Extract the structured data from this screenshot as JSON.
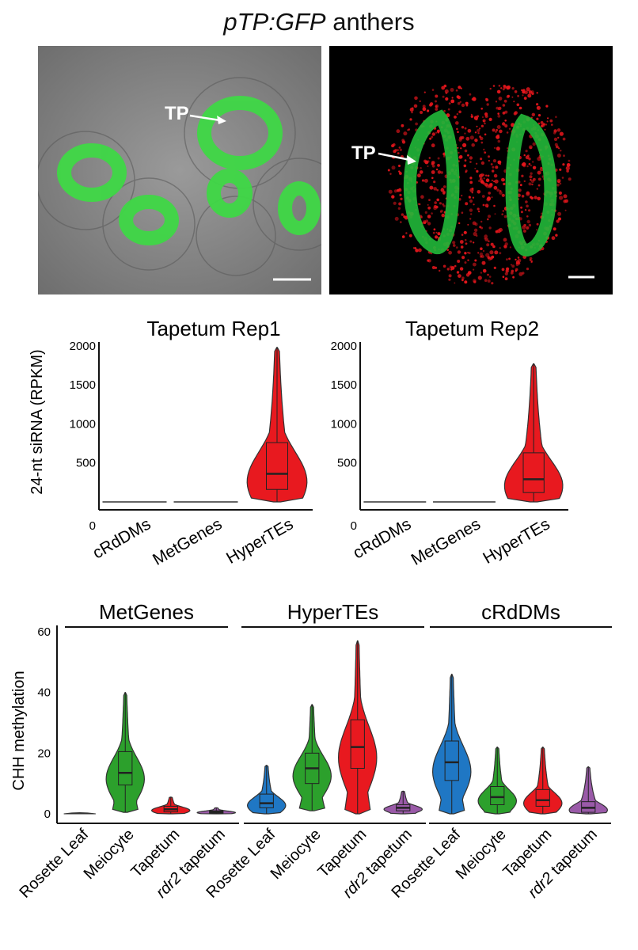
{
  "figure_title": {
    "prefix": "pTP:GFP",
    "suffix": " anthers"
  },
  "micrographs": {
    "left_label": "TP",
    "right_label": "TP"
  },
  "colors": {
    "red": "#e8191f",
    "green": "#2ca02c",
    "blue": "#1f77c4",
    "purple": "#9a5aa8",
    "gfp": "#3fd846"
  },
  "chart_data": [
    {
      "type": "violin",
      "title": "Tapetum Rep1",
      "ylabel": "24-nt siRNA (RPKM)",
      "yticks": [
        0,
        500,
        1000,
        1500,
        2000
      ],
      "ylim": [
        0,
        2050
      ],
      "categories": [
        "cRdDMs",
        "MetGenes",
        "HyperTEs"
      ],
      "values": [
        {
          "category": "cRdDMs",
          "max": 10,
          "q1": 0,
          "median": 2,
          "q3": 5,
          "min": 0
        },
        {
          "category": "MetGenes",
          "max": 10,
          "q1": 0,
          "median": 2,
          "q3": 5,
          "min": 0
        },
        {
          "category": "HyperTEs",
          "max": 1980,
          "q1": 160,
          "median": 360,
          "q3": 760,
          "min": 0
        }
      ]
    },
    {
      "type": "violin",
      "title": "Tapetum Rep2",
      "ylabel": "",
      "yticks": [
        0,
        500,
        1000,
        1500,
        2000
      ],
      "ylim": [
        0,
        2050
      ],
      "categories": [
        "cRdDMs",
        "MetGenes",
        "HyperTEs"
      ],
      "values": [
        {
          "category": "cRdDMs",
          "max": 10,
          "q1": 0,
          "median": 2,
          "q3": 5,
          "min": 0
        },
        {
          "category": "MetGenes",
          "max": 10,
          "q1": 0,
          "median": 2,
          "q3": 5,
          "min": 0
        },
        {
          "category": "HyperTEs",
          "max": 1770,
          "q1": 120,
          "median": 290,
          "q3": 630,
          "min": 0
        }
      ]
    },
    {
      "type": "violin",
      "ylabel": "CHH methylation",
      "yticks": [
        0,
        20,
        40,
        60
      ],
      "ylim": [
        0,
        62
      ],
      "groups": [
        "MetGenes",
        "HyperTEs",
        "cRdDMs"
      ],
      "categories": [
        "Rosette Leaf",
        "Meiocyte",
        "Tapetum",
        "rdr2 tapetum"
      ],
      "series": [
        {
          "group": "MetGenes",
          "values": [
            {
              "category": "Rosette Leaf",
              "max": 0.6,
              "q1": 0,
              "median": 0.1,
              "q3": 0.3,
              "min": 0
            },
            {
              "category": "Meiocyte",
              "max": 40,
              "q1": 9.5,
              "median": 13.5,
              "q3": 20.5,
              "min": 0.5
            },
            {
              "category": "Tapetum",
              "max": 5.5,
              "q1": 0.7,
              "median": 1.5,
              "q3": 2.5,
              "min": 0
            },
            {
              "category": "rdr2 tapetum",
              "max": 2,
              "q1": 0.2,
              "median": 0.6,
              "q3": 1.0,
              "min": 0
            }
          ]
        },
        {
          "group": "HyperTEs",
          "values": [
            {
              "category": "Rosette Leaf",
              "max": 16,
              "q1": 2,
              "median": 3.5,
              "q3": 6.5,
              "min": 0
            },
            {
              "category": "Meiocyte",
              "max": 36,
              "q1": 10,
              "median": 15,
              "q3": 20,
              "min": 1
            },
            {
              "category": "Tapetum",
              "max": 57,
              "q1": 15,
              "median": 22,
              "q3": 31,
              "min": 0
            },
            {
              "category": "rdr2 tapetum",
              "max": 7.5,
              "q1": 1,
              "median": 2,
              "q3": 3,
              "min": 0
            }
          ]
        },
        {
          "group": "cRdDMs",
          "values": [
            {
              "category": "Rosette Leaf",
              "max": 46,
              "q1": 11,
              "median": 17,
              "q3": 24,
              "min": 0
            },
            {
              "category": "Meiocyte",
              "max": 22,
              "q1": 3,
              "median": 5.5,
              "q3": 9,
              "min": 0
            },
            {
              "category": "Tapetum",
              "max": 22,
              "q1": 2.5,
              "median": 4.5,
              "q3": 8,
              "min": 0
            },
            {
              "category": "rdr2 tapetum",
              "max": 15.5,
              "q1": 0.5,
              "median": 2,
              "q3": 4,
              "min": 0
            }
          ]
        }
      ]
    }
  ]
}
